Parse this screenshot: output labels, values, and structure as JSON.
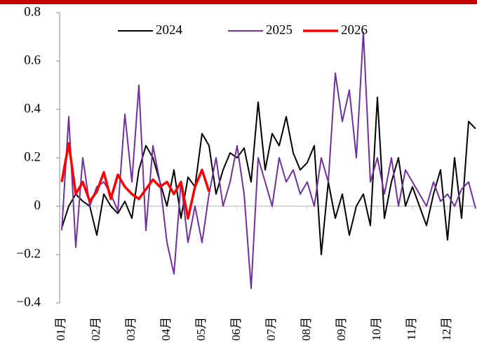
{
  "chart_data": {
    "type": "line",
    "categories": [
      "01月",
      null,
      null,
      null,
      null,
      "02月",
      null,
      null,
      null,
      null,
      "03月",
      null,
      null,
      null,
      null,
      "04月",
      null,
      null,
      null,
      null,
      "05月",
      null,
      null,
      null,
      null,
      "06月",
      null,
      null,
      null,
      null,
      "07月",
      null,
      null,
      null,
      null,
      "08月",
      null,
      null,
      null,
      null,
      "09月",
      null,
      null,
      null,
      null,
      "10月",
      null,
      null,
      null,
      null,
      "11月",
      null,
      null,
      null,
      null,
      "12月",
      null,
      null,
      null,
      null
    ],
    "series": [
      {
        "name": "2024",
        "color": "#000000",
        "values": [
          -0.09,
          0.0,
          0.05,
          0.02,
          0.0,
          -0.12,
          0.05,
          0.0,
          -0.03,
          0.02,
          -0.05,
          0.15,
          0.25,
          0.2,
          0.1,
          0.0,
          0.15,
          -0.05,
          0.12,
          0.08,
          0.3,
          0.25,
          0.05,
          0.15,
          0.22,
          0.2,
          0.24,
          0.1,
          0.43,
          0.15,
          0.3,
          0.25,
          0.37,
          0.22,
          0.15,
          0.18,
          0.25,
          -0.2,
          0.1,
          -0.05,
          0.05,
          -0.12,
          0.0,
          0.05,
          -0.08,
          0.45,
          -0.05,
          0.1,
          0.2,
          0.0,
          0.08,
          0.0,
          -0.08,
          0.05,
          0.15,
          -0.14,
          0.2,
          -0.05,
          0.35,
          0.32
        ]
      },
      {
        "name": "2025",
        "color": "#7030a0",
        "values": [
          -0.1,
          0.37,
          -0.17,
          0.2,
          0.0,
          0.08,
          0.1,
          0.05,
          -0.02,
          0.38,
          0.1,
          0.5,
          -0.1,
          0.25,
          0.1,
          -0.15,
          -0.28,
          0.1,
          -0.15,
          0.0,
          -0.15,
          0.05,
          0.2,
          0.0,
          0.1,
          0.25,
          0.05,
          -0.34,
          0.2,
          0.1,
          0.0,
          0.2,
          0.1,
          0.15,
          0.05,
          0.1,
          0.0,
          0.2,
          0.1,
          0.55,
          0.35,
          0.48,
          0.2,
          0.72,
          0.1,
          0.2,
          0.05,
          0.2,
          0.0,
          0.15,
          0.1,
          0.05,
          0.0,
          0.1,
          0.02,
          0.05,
          0.0,
          0.07,
          0.1,
          -0.01
        ]
      },
      {
        "name": "2026",
        "color": "#ff0000",
        "values": [
          0.1,
          0.26,
          0.05,
          0.1,
          0.02,
          0.06,
          0.14,
          0.03,
          0.13,
          0.08,
          0.05,
          0.03,
          0.07,
          0.11,
          0.08,
          0.1,
          0.05,
          0.1,
          -0.05,
          0.08,
          0.15,
          0.06,
          null,
          null,
          null,
          null,
          null,
          null,
          null,
          null,
          null,
          null,
          null,
          null,
          null,
          null,
          null,
          null,
          null,
          null,
          null,
          null,
          null,
          null,
          null,
          null,
          null,
          null,
          null,
          null,
          null,
          null,
          null,
          null,
          null,
          null,
          null,
          null,
          null,
          null
        ]
      }
    ],
    "ylim": [
      -0.4,
      0.8
    ],
    "yticks": [
      {
        "value": -0.4,
        "label": "−0.4"
      },
      {
        "value": -0.2,
        "label": "−0.2"
      },
      0,
      0.2,
      0.4,
      0.6,
      0.8
    ],
    "grid": false,
    "legend": "top"
  }
}
